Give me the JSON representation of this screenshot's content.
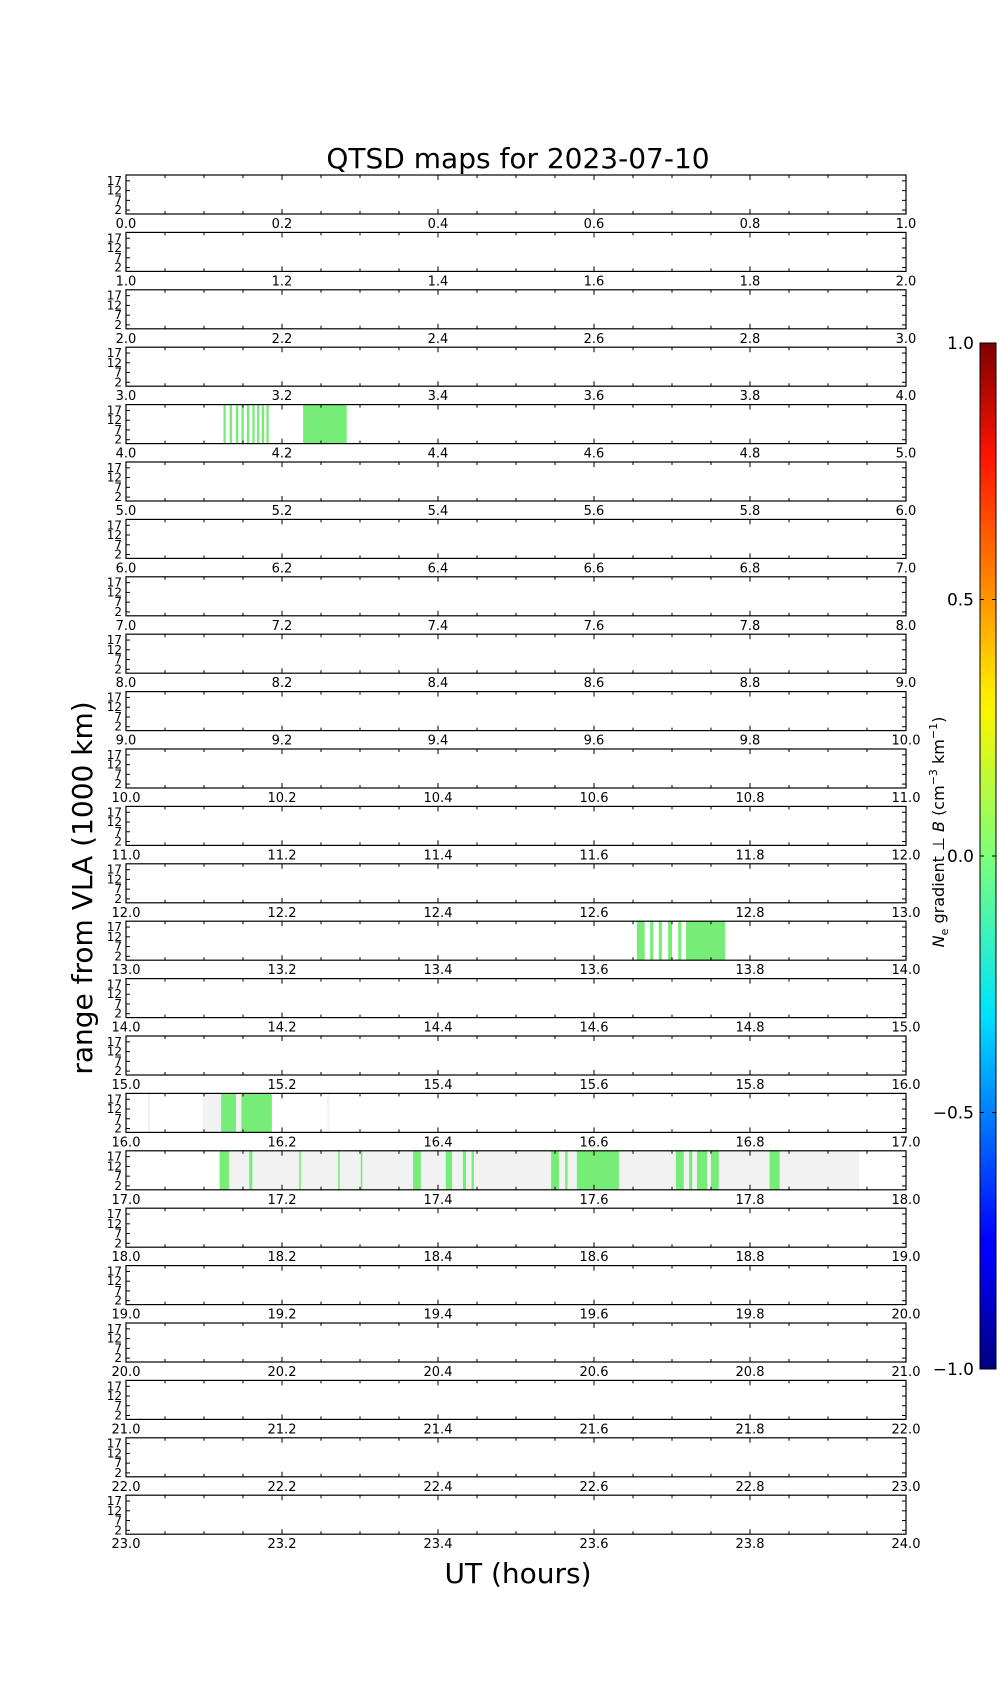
{
  "chart_data": {
    "type": "heatmap",
    "title": "QTSD maps for 2023-07-10",
    "xlabel": "UT (hours)",
    "ylabel": "range from VLA (1000 km)",
    "y_ticks": [
      "2",
      "7",
      "12",
      "17"
    ],
    "ylim": [
      0,
      20
    ],
    "xlim": [
      0,
      24
    ],
    "rows_per_hour": 1,
    "x_tick_step": 0.2,
    "colorbar": {
      "label": "N_e gradient ⊥ B (cm^-3 km^-1)",
      "label_parts": [
        "N",
        "e",
        " gradient ⊥ ",
        "B",
        " (cm",
        "−3",
        " km",
        "−1",
        ")"
      ],
      "range": [
        -1.0,
        1.0
      ],
      "ticks": [
        "1.0",
        "0.5",
        "0.0",
        "−0.5",
        "−1.0"
      ],
      "colormap": "jet"
    },
    "colors": {
      "nodata": "#f2f2f2",
      "value_color": "#76ed76"
    },
    "segments": [
      {
        "start": 4.125,
        "end": 4.128,
        "kind": "value"
      },
      {
        "start": 4.133,
        "end": 4.136,
        "kind": "value"
      },
      {
        "start": 4.141,
        "end": 4.144,
        "kind": "value"
      },
      {
        "start": 4.148,
        "end": 4.151,
        "kind": "value"
      },
      {
        "start": 4.155,
        "end": 4.158,
        "kind": "value"
      },
      {
        "start": 4.162,
        "end": 4.165,
        "kind": "value"
      },
      {
        "start": 4.168,
        "end": 4.171,
        "kind": "value"
      },
      {
        "start": 4.174,
        "end": 4.177,
        "kind": "value"
      },
      {
        "start": 4.18,
        "end": 4.183,
        "kind": "value"
      },
      {
        "start": 4.227,
        "end": 4.283,
        "kind": "value"
      },
      {
        "start": 13.655,
        "end": 13.665,
        "kind": "value"
      },
      {
        "start": 13.672,
        "end": 13.676,
        "kind": "value"
      },
      {
        "start": 13.683,
        "end": 13.687,
        "kind": "value"
      },
      {
        "start": 13.695,
        "end": 13.7,
        "kind": "value"
      },
      {
        "start": 13.708,
        "end": 13.712,
        "kind": "value"
      },
      {
        "start": 13.718,
        "end": 13.768,
        "kind": "value"
      },
      {
        "start": 16.028,
        "end": 16.031,
        "kind": "nodata"
      },
      {
        "start": 16.098,
        "end": 16.122,
        "kind": "nodata"
      },
      {
        "start": 16.122,
        "end": 16.141,
        "kind": "value"
      },
      {
        "start": 16.141,
        "end": 16.148,
        "kind": "nodata"
      },
      {
        "start": 16.148,
        "end": 16.187,
        "kind": "value"
      },
      {
        "start": 16.258,
        "end": 16.261,
        "kind": "nodata"
      },
      {
        "start": 17.12,
        "end": 17.132,
        "kind": "value"
      },
      {
        "start": 17.132,
        "end": 17.94,
        "kind": "nodata"
      },
      {
        "start": 17.158,
        "end": 17.162,
        "kind": "value"
      },
      {
        "start": 17.222,
        "end": 17.224,
        "kind": "value"
      },
      {
        "start": 17.272,
        "end": 17.274,
        "kind": "value"
      },
      {
        "start": 17.301,
        "end": 17.303,
        "kind": "value"
      },
      {
        "start": 17.368,
        "end": 17.378,
        "kind": "value"
      },
      {
        "start": 17.41,
        "end": 17.418,
        "kind": "value"
      },
      {
        "start": 17.432,
        "end": 17.436,
        "kind": "value"
      },
      {
        "start": 17.443,
        "end": 17.446,
        "kind": "value"
      },
      {
        "start": 17.545,
        "end": 17.555,
        "kind": "value"
      },
      {
        "start": 17.563,
        "end": 17.566,
        "kind": "value"
      },
      {
        "start": 17.578,
        "end": 17.632,
        "kind": "value"
      },
      {
        "start": 17.705,
        "end": 17.715,
        "kind": "value"
      },
      {
        "start": 17.722,
        "end": 17.726,
        "kind": "value"
      },
      {
        "start": 17.732,
        "end": 17.745,
        "kind": "value"
      },
      {
        "start": 17.75,
        "end": 17.76,
        "kind": "value"
      },
      {
        "start": 17.825,
        "end": 17.838,
        "kind": "value"
      }
    ]
  }
}
